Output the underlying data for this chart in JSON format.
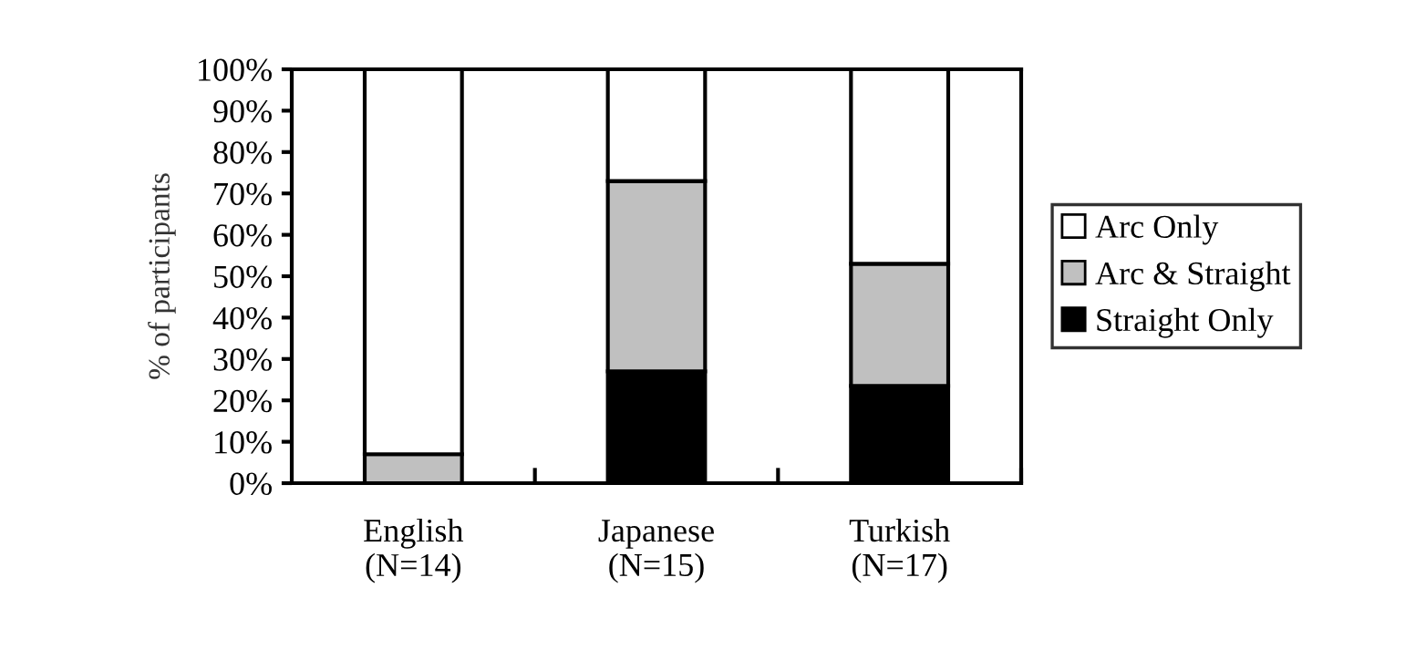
{
  "chart_data": {
    "type": "bar",
    "stacked": true,
    "ylabel": "% of participants",
    "categories": [
      "English\n(N=14)",
      "Japanese\n(N=15)",
      "Turkish\n(N=17)"
    ],
    "series": [
      {
        "name": "Straight Only",
        "color": "#000000",
        "values": [
          0,
          27,
          23.5
        ]
      },
      {
        "name": "Arc & Straight",
        "color": "#c0c0c0",
        "values": [
          7,
          46,
          29.5
        ]
      },
      {
        "name": "Arc Only",
        "color": "#ffffff",
        "values": [
          93,
          27,
          47
        ]
      }
    ],
    "ylim": [
      0,
      100
    ],
    "yticks": [
      {
        "value": 0,
        "label": "0%"
      },
      {
        "value": 10,
        "label": "10%"
      },
      {
        "value": 20,
        "label": "20%"
      },
      {
        "value": 30,
        "label": "30%"
      },
      {
        "value": 40,
        "label": "40%"
      },
      {
        "value": 50,
        "label": "50%"
      },
      {
        "value": 60,
        "label": "60%"
      },
      {
        "value": 70,
        "label": "70%"
      },
      {
        "value": 80,
        "label": "80%"
      },
      {
        "value": 90,
        "label": "90%"
      },
      {
        "value": 100,
        "label": "100%"
      }
    ],
    "grid": false,
    "legend": "right"
  }
}
